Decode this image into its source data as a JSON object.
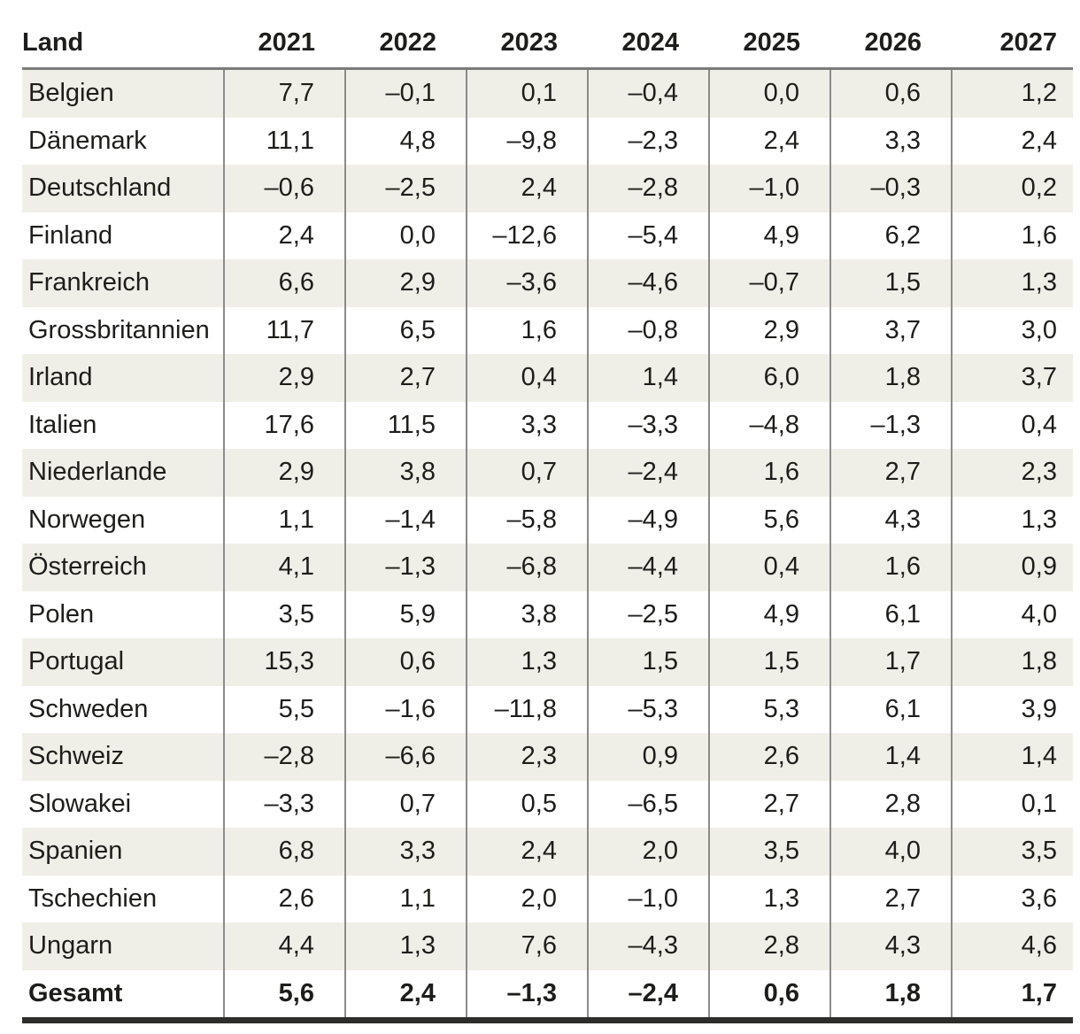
{
  "table": {
    "header": [
      "Land",
      "2021",
      "2022",
      "2023",
      "2024",
      "2025",
      "2026",
      "2027"
    ],
    "rows": [
      {
        "land": "Belgien",
        "values": [
          "7,7",
          "–0,1",
          "0,1",
          "–0,4",
          "0,0",
          "0,6",
          "1,2"
        ]
      },
      {
        "land": "Dänemark",
        "values": [
          "11,1",
          "4,8",
          "–9,8",
          "–2,3",
          "2,4",
          "3,3",
          "2,4"
        ]
      },
      {
        "land": "Deutschland",
        "values": [
          "–0,6",
          "–2,5",
          "2,4",
          "–2,8",
          "–1,0",
          "–0,3",
          "0,2"
        ]
      },
      {
        "land": "Finland",
        "values": [
          "2,4",
          "0,0",
          "–12,6",
          "–5,4",
          "4,9",
          "6,2",
          "1,6"
        ]
      },
      {
        "land": "Frankreich",
        "values": [
          "6,6",
          "2,9",
          "–3,6",
          "–4,6",
          "–0,7",
          "1,5",
          "1,3"
        ]
      },
      {
        "land": "Grossbritannien",
        "values": [
          "11,7",
          "6,5",
          "1,6",
          "–0,8",
          "2,9",
          "3,7",
          "3,0"
        ]
      },
      {
        "land": "Irland",
        "values": [
          "2,9",
          "2,7",
          "0,4",
          "1,4",
          "6,0",
          "1,8",
          "3,7"
        ]
      },
      {
        "land": "Italien",
        "values": [
          "17,6",
          "11,5",
          "3,3",
          "–3,3",
          "–4,8",
          "–1,3",
          "0,4"
        ]
      },
      {
        "land": "Niederlande",
        "values": [
          "2,9",
          "3,8",
          "0,7",
          "–2,4",
          "1,6",
          "2,7",
          "2,3"
        ]
      },
      {
        "land": "Norwegen",
        "values": [
          "1,1",
          "–1,4",
          "–5,8",
          "–4,9",
          "5,6",
          "4,3",
          "1,3"
        ]
      },
      {
        "land": "Österreich",
        "values": [
          "4,1",
          "–1,3",
          "–6,8",
          "–4,4",
          "0,4",
          "1,6",
          "0,9"
        ]
      },
      {
        "land": "Polen",
        "values": [
          "3,5",
          "5,9",
          "3,8",
          "–2,5",
          "4,9",
          "6,1",
          "4,0"
        ]
      },
      {
        "land": "Portugal",
        "values": [
          "15,3",
          "0,6",
          "1,3",
          "1,5",
          "1,5",
          "1,7",
          "1,8"
        ]
      },
      {
        "land": "Schweden",
        "values": [
          "5,5",
          "–1,6",
          "–11,8",
          "–5,3",
          "5,3",
          "6,1",
          "3,9"
        ]
      },
      {
        "land": "Schweiz",
        "values": [
          "–2,8",
          "–6,6",
          "2,3",
          "0,9",
          "2,6",
          "1,4",
          "1,4"
        ]
      },
      {
        "land": "Slowakei",
        "values": [
          "–3,3",
          "0,7",
          "0,5",
          "–6,5",
          "2,7",
          "2,8",
          "0,1"
        ]
      },
      {
        "land": "Spanien",
        "values": [
          "6,8",
          "3,3",
          "2,4",
          "2,0",
          "3,5",
          "4,0",
          "3,5"
        ]
      },
      {
        "land": "Tschechien",
        "values": [
          "2,6",
          "1,1",
          "2,0",
          "–1,0",
          "1,3",
          "2,7",
          "3,6"
        ]
      },
      {
        "land": "Ungarn",
        "values": [
          "4,4",
          "1,3",
          "7,6",
          "–4,3",
          "2,8",
          "4,3",
          "4,6"
        ]
      },
      {
        "land": "Gesamt",
        "values": [
          "5,6",
          "2,4",
          "–1,3",
          "–2,4",
          "0,6",
          "1,8",
          "1,7"
        ],
        "bold": true
      }
    ]
  },
  "chart_data": {
    "type": "table",
    "columns": [
      "Land",
      "2021",
      "2022",
      "2023",
      "2024",
      "2025",
      "2026",
      "2027"
    ],
    "rows": [
      [
        "Belgien",
        7.7,
        -0.1,
        0.1,
        -0.4,
        0.0,
        0.6,
        1.2
      ],
      [
        "Dänemark",
        11.1,
        4.8,
        -9.8,
        -2.3,
        2.4,
        3.3,
        2.4
      ],
      [
        "Deutschland",
        -0.6,
        -2.5,
        2.4,
        -2.8,
        -1.0,
        -0.3,
        0.2
      ],
      [
        "Finland",
        2.4,
        0.0,
        -12.6,
        -5.4,
        4.9,
        6.2,
        1.6
      ],
      [
        "Frankreich",
        6.6,
        2.9,
        -3.6,
        -4.6,
        -0.7,
        1.5,
        1.3
      ],
      [
        "Grossbritannien",
        11.7,
        6.5,
        1.6,
        -0.8,
        2.9,
        3.7,
        3.0
      ],
      [
        "Irland",
        2.9,
        2.7,
        0.4,
        1.4,
        6.0,
        1.8,
        3.7
      ],
      [
        "Italien",
        17.6,
        11.5,
        3.3,
        -3.3,
        -4.8,
        -1.3,
        0.4
      ],
      [
        "Niederlande",
        2.9,
        3.8,
        0.7,
        -2.4,
        1.6,
        2.7,
        2.3
      ],
      [
        "Norwegen",
        1.1,
        -1.4,
        -5.8,
        -4.9,
        5.6,
        4.3,
        1.3
      ],
      [
        "Österreich",
        4.1,
        -1.3,
        -6.8,
        -4.4,
        0.4,
        1.6,
        0.9
      ],
      [
        "Polen",
        3.5,
        5.9,
        3.8,
        -2.5,
        4.9,
        6.1,
        4.0
      ],
      [
        "Portugal",
        15.3,
        0.6,
        1.3,
        1.5,
        1.5,
        1.7,
        1.8
      ],
      [
        "Schweden",
        5.5,
        -1.6,
        -11.8,
        -5.3,
        5.3,
        6.1,
        3.9
      ],
      [
        "Schweiz",
        -2.8,
        -6.6,
        2.3,
        0.9,
        2.6,
        1.4,
        1.4
      ],
      [
        "Slowakei",
        -3.3,
        0.7,
        0.5,
        -6.5,
        2.7,
        2.8,
        0.1
      ],
      [
        "Spanien",
        6.8,
        3.3,
        2.4,
        2.0,
        3.5,
        4.0,
        3.5
      ],
      [
        "Tschechien",
        2.6,
        1.1,
        2.0,
        -1.0,
        1.3,
        2.7,
        3.6
      ],
      [
        "Ungarn",
        4.4,
        1.3,
        7.6,
        -4.3,
        2.8,
        4.3,
        4.6
      ],
      [
        "Gesamt",
        5.6,
        2.4,
        -1.3,
        -2.4,
        0.6,
        1.8,
        1.7
      ]
    ],
    "notes": "Decimal comma locale (de-CH); minus rendered as en dash; last row Gesamt is bold total row; odd rows shaded #f0efe7"
  },
  "colors": {
    "stripe_row": "#f0efe7",
    "grid_line": "#8b8b8a",
    "header_rule": "#7b7b7a",
    "bottom_rule": "#2d2d2c",
    "text": "#1d1d1b",
    "background": "#ffffff"
  }
}
